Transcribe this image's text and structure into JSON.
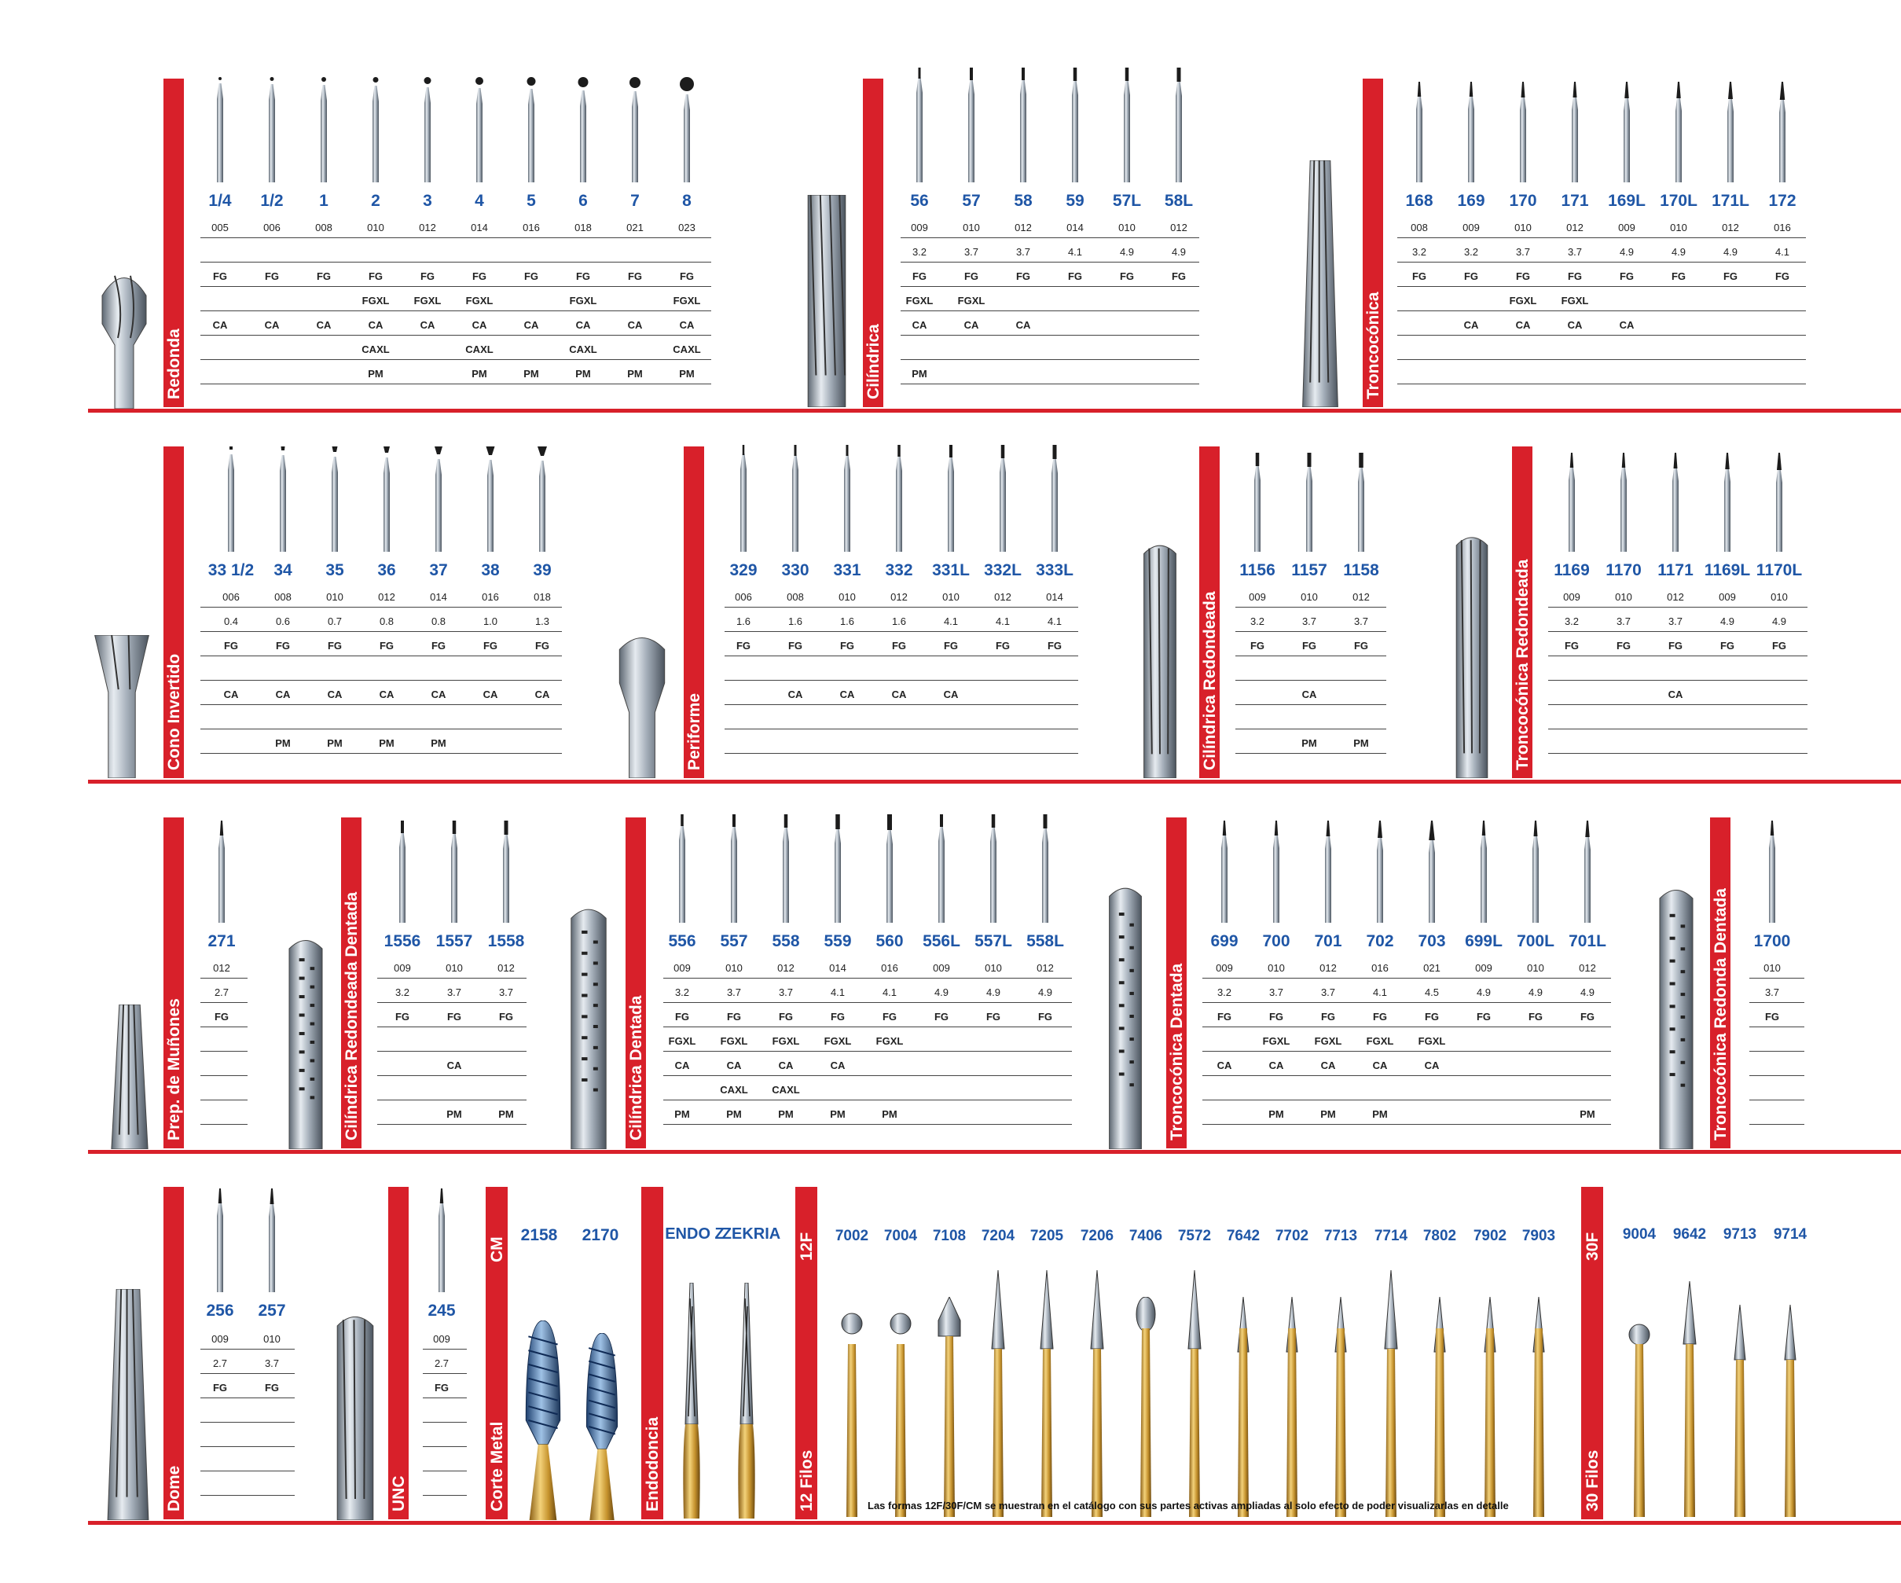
{
  "colors": {
    "red": "#d8202a",
    "blue": "#1f56a6",
    "steel": "#8d97a3",
    "gold": "#c99a3e"
  },
  "row_labels": [
    "",
    "",
    "",
    "",
    "",
    ""
  ],
  "groups": [
    {
      "label": "Redonda",
      "codes": [
        "1/4",
        "1/2",
        "1",
        "2",
        "3",
        "4",
        "5",
        "6",
        "7",
        "8"
      ],
      "rows": [
        [
          "005",
          "006",
          "008",
          "010",
          "012",
          "014",
          "016",
          "018",
          "021",
          "023"
        ],
        [
          "",
          "",
          "",
          "",
          "",
          "",
          "",
          "",
          "",
          ""
        ],
        [
          "FG",
          "FG",
          "FG",
          "FG",
          "FG",
          "FG",
          "FG",
          "FG",
          "FG",
          "FG"
        ],
        [
          "",
          "",
          "",
          "FGXL",
          "FGXL",
          "FGXL",
          "",
          "FGXL",
          "",
          "FGXL"
        ],
        [
          "CA",
          "CA",
          "CA",
          "CA",
          "CA",
          "CA",
          "CA",
          "CA",
          "CA",
          "CA"
        ],
        [
          "",
          "",
          "",
          "CAXL",
          "",
          "CAXL",
          "",
          "CAXL",
          "",
          "CAXL"
        ],
        [
          "",
          "",
          "",
          "PM",
          "",
          "PM",
          "PM",
          "PM",
          "PM",
          "PM"
        ]
      ]
    },
    {
      "label": "Cilíndrica",
      "codes": [
        "56",
        "57",
        "58",
        "59",
        "57L",
        "58L"
      ],
      "rows": [
        [
          "009",
          "010",
          "012",
          "014",
          "010",
          "012"
        ],
        [
          "3.2",
          "3.7",
          "3.7",
          "4.1",
          "4.9",
          "4.9"
        ],
        [
          "FG",
          "FG",
          "FG",
          "FG",
          "FG",
          "FG"
        ],
        [
          "FGXL",
          "FGXL",
          "",
          "",
          "",
          ""
        ],
        [
          "CA",
          "CA",
          "CA",
          "",
          "",
          ""
        ],
        [
          "",
          "",
          "",
          "",
          "",
          ""
        ],
        [
          "PM",
          "",
          "",
          "",
          "",
          ""
        ]
      ]
    },
    {
      "label": "Troncocónica",
      "codes": [
        "168",
        "169",
        "170",
        "171",
        "169L",
        "170L",
        "171L",
        "172"
      ],
      "rows": [
        [
          "008",
          "009",
          "010",
          "012",
          "009",
          "010",
          "012",
          "016"
        ],
        [
          "3.2",
          "3.2",
          "3.7",
          "3.7",
          "4.9",
          "4.9",
          "4.9",
          "4.1"
        ],
        [
          "FG",
          "FG",
          "FG",
          "FG",
          "FG",
          "FG",
          "FG",
          "FG"
        ],
        [
          "",
          "",
          "FGXL",
          "FGXL",
          "",
          "",
          "",
          ""
        ],
        [
          "",
          "CA",
          "CA",
          "CA",
          "CA",
          "",
          "",
          ""
        ],
        [
          "",
          "",
          "",
          "",
          "",
          "",
          "",
          ""
        ],
        [
          "",
          "",
          "",
          "",
          "",
          "",
          "",
          ""
        ]
      ]
    },
    {
      "label": "Cono Invertido",
      "codes": [
        "33 1/2",
        "34",
        "35",
        "36",
        "37",
        "38",
        "39"
      ],
      "rows": [
        [
          "006",
          "008",
          "010",
          "012",
          "014",
          "016",
          "018"
        ],
        [
          "0.4",
          "0.6",
          "0.7",
          "0.8",
          "0.8",
          "1.0",
          "1.3"
        ],
        [
          "FG",
          "FG",
          "FG",
          "FG",
          "FG",
          "FG",
          "FG"
        ],
        [
          "",
          "",
          "",
          "",
          "",
          "",
          ""
        ],
        [
          "CA",
          "CA",
          "CA",
          "CA",
          "CA",
          "CA",
          "CA"
        ],
        [
          "",
          "",
          "",
          "",
          "",
          "",
          ""
        ],
        [
          "",
          "PM",
          "PM",
          "PM",
          "PM",
          "",
          ""
        ]
      ]
    },
    {
      "label": "Periforme",
      "codes": [
        "329",
        "330",
        "331",
        "332",
        "331L",
        "332L",
        "333L"
      ],
      "rows": [
        [
          "006",
          "008",
          "010",
          "012",
          "010",
          "012",
          "014"
        ],
        [
          "1.6",
          "1.6",
          "1.6",
          "1.6",
          "4.1",
          "4.1",
          "4.1"
        ],
        [
          "FG",
          "FG",
          "FG",
          "FG",
          "FG",
          "FG",
          "FG"
        ],
        [
          "",
          "",
          "",
          "",
          "",
          "",
          ""
        ],
        [
          "",
          "CA",
          "CA",
          "CA",
          "CA",
          "",
          ""
        ],
        [
          "",
          "",
          "",
          "",
          "",
          "",
          ""
        ],
        [
          "",
          "",
          "",
          "",
          "",
          "",
          ""
        ]
      ]
    },
    {
      "label": "Cilíndrica Redondeada",
      "codes": [
        "1156",
        "1157",
        "1158"
      ],
      "rows": [
        [
          "009",
          "010",
          "012"
        ],
        [
          "3.2",
          "3.7",
          "3.7"
        ],
        [
          "FG",
          "FG",
          "FG"
        ],
        [
          "",
          "",
          ""
        ],
        [
          "",
          "CA",
          ""
        ],
        [
          "",
          "",
          ""
        ],
        [
          "",
          "PM",
          "PM"
        ]
      ]
    },
    {
      "label": "Troncocónica Redondeada",
      "codes": [
        "1169",
        "1170",
        "1171",
        "1169L",
        "1170L"
      ],
      "rows": [
        [
          "009",
          "010",
          "012",
          "009",
          "010"
        ],
        [
          "3.2",
          "3.7",
          "3.7",
          "4.9",
          "4.9"
        ],
        [
          "FG",
          "FG",
          "FG",
          "FG",
          "FG"
        ],
        [
          "",
          "",
          "",
          "",
          ""
        ],
        [
          "",
          "",
          "CA",
          "",
          ""
        ],
        [
          "",
          "",
          "",
          "",
          ""
        ],
        [
          "",
          "",
          "",
          "",
          ""
        ]
      ]
    },
    {
      "label": "Prep. de Muñones",
      "codes": [
        "271"
      ],
      "rows": [
        [
          "012"
        ],
        [
          "2.7"
        ],
        [
          "FG"
        ],
        [
          ""
        ],
        [
          ""
        ],
        [
          ""
        ],
        [
          ""
        ]
      ]
    },
    {
      "label": "Cilíndrica Redondeada Dentada",
      "codes": [
        "1556",
        "1557",
        "1558"
      ],
      "rows": [
        [
          "009",
          "010",
          "012"
        ],
        [
          "3.2",
          "3.7",
          "3.7"
        ],
        [
          "FG",
          "FG",
          "FG"
        ],
        [
          "",
          "",
          ""
        ],
        [
          "",
          "CA",
          ""
        ],
        [
          "",
          "",
          ""
        ],
        [
          "",
          "PM",
          "PM"
        ]
      ]
    },
    {
      "label": "Cilíndrica Dentada",
      "codes": [
        "556",
        "557",
        "558",
        "559",
        "560",
        "556L",
        "557L",
        "558L"
      ],
      "rows": [
        [
          "009",
          "010",
          "012",
          "014",
          "016",
          "009",
          "010",
          "012"
        ],
        [
          "3.2",
          "3.7",
          "3.7",
          "4.1",
          "4.1",
          "4.9",
          "4.9",
          "4.9"
        ],
        [
          "FG",
          "FG",
          "FG",
          "FG",
          "FG",
          "FG",
          "FG",
          "FG"
        ],
        [
          "FGXL",
          "FGXL",
          "FGXL",
          "FGXL",
          "FGXL",
          "",
          "",
          ""
        ],
        [
          "CA",
          "CA",
          "CA",
          "CA",
          "",
          "",
          "",
          ""
        ],
        [
          "",
          "CAXL",
          "CAXL",
          "",
          "",
          "",
          "",
          ""
        ],
        [
          "PM",
          "PM",
          "PM",
          "PM",
          "PM",
          "",
          "",
          ""
        ]
      ]
    },
    {
      "label": "Troncocónica Dentada",
      "codes": [
        "699",
        "700",
        "701",
        "702",
        "703",
        "699L",
        "700L",
        "701L"
      ],
      "rows": [
        [
          "009",
          "010",
          "012",
          "016",
          "021",
          "009",
          "010",
          "012"
        ],
        [
          "3.2",
          "3.7",
          "3.7",
          "4.1",
          "4.5",
          "4.9",
          "4.9",
          "4.9"
        ],
        [
          "FG",
          "FG",
          "FG",
          "FG",
          "FG",
          "FG",
          "FG",
          "FG"
        ],
        [
          "",
          "FGXL",
          "FGXL",
          "FGXL",
          "FGXL",
          "",
          "",
          ""
        ],
        [
          "CA",
          "CA",
          "CA",
          "CA",
          "CA",
          "",
          "",
          ""
        ],
        [
          "",
          "",
          "",
          "",
          "",
          "",
          "",
          ""
        ],
        [
          "",
          "PM",
          "PM",
          "PM",
          "",
          "",
          "",
          "PM"
        ]
      ]
    },
    {
      "label": "Troncocónica Redonda Dentada",
      "codes": [
        "1700"
      ],
      "rows": [
        [
          "010"
        ],
        [
          "3.7"
        ],
        [
          "FG"
        ],
        [
          ""
        ],
        [
          ""
        ],
        [
          ""
        ],
        [
          ""
        ]
      ]
    },
    {
      "label": "Dome",
      "codes": [
        "256",
        "257"
      ],
      "rows": [
        [
          "009",
          "010"
        ],
        [
          "2.7",
          "3.7"
        ],
        [
          "FG",
          "FG"
        ],
        [
          "",
          ""
        ],
        [
          "",
          ""
        ],
        [
          "",
          ""
        ],
        [
          "",
          ""
        ]
      ]
    },
    {
      "label": "UNC",
      "codes": [
        "245"
      ],
      "rows": [
        [
          "009"
        ],
        [
          "2.7"
        ],
        [
          "FG"
        ],
        [
          ""
        ],
        [
          ""
        ],
        [
          ""
        ],
        [
          ""
        ]
      ]
    }
  ],
  "specials": {
    "cm": {
      "label": "Corte Metal",
      "tab": "CM",
      "codes": [
        "2158",
        "2170"
      ]
    },
    "endo": {
      "label": "Endodoncia",
      "codes": [
        "ENDO Z",
        "ZEKRIA"
      ]
    },
    "f12": {
      "label": "12 Filos",
      "tab": "12F",
      "codes": [
        "7002",
        "7004",
        "7108",
        "7204",
        "7205",
        "7206",
        "7406",
        "7572",
        "7642",
        "7702",
        "7713",
        "7714",
        "7802",
        "7902",
        "7903"
      ]
    },
    "f30": {
      "label": "30 Filos",
      "tab": "30F",
      "codes": [
        "9004",
        "9642",
        "9713",
        "9714"
      ]
    }
  },
  "footnote": "Las formas 12F/30F/CM se muestran en el catálogo con sus partes activas ampliadas al solo efecto de poder visualizarlas en detalle"
}
